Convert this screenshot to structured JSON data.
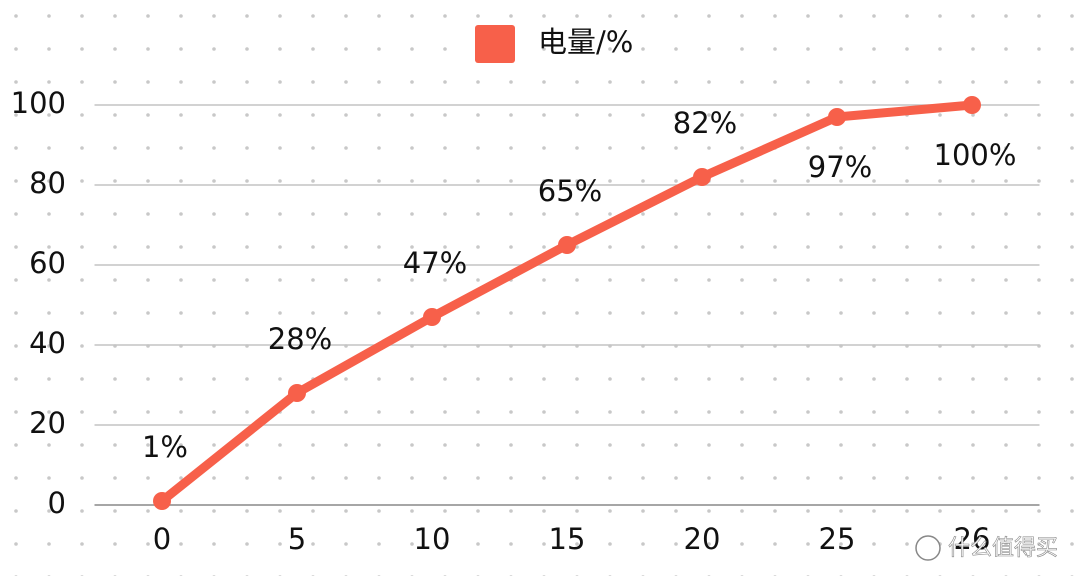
{
  "chart_data": {
    "type": "line",
    "categories": [
      "0",
      "5",
      "10",
      "15",
      "20",
      "25",
      "26"
    ],
    "series": [
      {
        "name": "电量/%",
        "color": "#f7604a",
        "values": [
          1,
          28,
          47,
          65,
          82,
          97,
          100
        ],
        "value_labels": [
          "1%",
          "28%",
          "47%",
          "65%",
          "82%",
          "97%",
          "100%"
        ]
      }
    ],
    "ylim": [
      0,
      100
    ],
    "yticks": [
      0,
      20,
      40,
      60,
      80,
      100
    ],
    "grid": true,
    "legend": "top",
    "watermark": "什么值得买"
  }
}
